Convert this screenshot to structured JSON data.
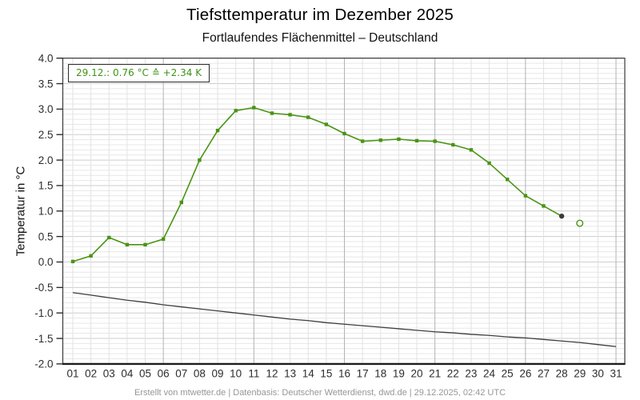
{
  "header": {
    "title": "Tiefsttemperatur im Dezember 2025",
    "subtitle": "Fortlaufendes Flächenmittel – Deutschland"
  },
  "annotation": {
    "text": "29.12.: 0.76 °C ≙ +2.34 K",
    "color": "#3f9314"
  },
  "footer": {
    "text": "Erstellt von mtwetter.de | Datenbasis: Deutscher Wetterdienst, dwd.de | 29.12.2025, 02:42 UTC"
  },
  "chart_data": {
    "type": "line",
    "title": "Tiefsttemperatur im Dezember 2025",
    "subtitle": "Fortlaufendes Flächenmittel – Deutschland",
    "ylabel": "Temperatur in °C",
    "xlabel": "",
    "ylim": [
      -2.0,
      4.0
    ],
    "grid": true,
    "y_ticks": [
      "4.0",
      "3.5",
      "3.0",
      "2.5",
      "2.0",
      "1.5",
      "1.0",
      "0.5",
      "0.0",
      "-0.5",
      "-1.0",
      "-1.5",
      "-2.0"
    ],
    "x_labels": [
      "01",
      "02",
      "03",
      "04",
      "05",
      "06",
      "07",
      "08",
      "09",
      "10",
      "11",
      "12",
      "13",
      "14",
      "15",
      "16",
      "17",
      "18",
      "19",
      "20",
      "21",
      "22",
      "23",
      "24",
      "25",
      "26",
      "27",
      "28",
      "29",
      "30",
      "31"
    ],
    "series": [
      {
        "id": "daily-min-temperature",
        "color": "#4a9413",
        "marker": "square",
        "values": [
          0.01,
          0.12,
          0.48,
          0.34,
          0.34,
          0.45,
          1.17,
          2.0,
          2.58,
          2.97,
          3.03,
          2.92,
          2.89,
          2.84,
          2.7,
          2.52,
          2.37,
          2.39,
          2.41,
          2.38,
          2.37,
          2.3,
          2.2,
          1.94,
          1.62,
          1.3,
          1.1,
          0.9
        ]
      },
      {
        "id": "reference-mean",
        "color": "#3d3d3d",
        "marker": "none",
        "values": [
          -0.6,
          -0.65,
          -0.7,
          -0.75,
          -0.79,
          -0.84,
          -0.88,
          -0.92,
          -0.96,
          -1.0,
          -1.04,
          -1.08,
          -1.12,
          -1.15,
          -1.19,
          -1.22,
          -1.25,
          -1.28,
          -1.31,
          -1.34,
          -1.37,
          -1.39,
          -1.42,
          -1.44,
          -1.47,
          -1.49,
          -1.52,
          -1.55,
          -1.58,
          -1.62,
          -1.66
        ]
      }
    ],
    "end_marker": {
      "day": "28",
      "value": 0.9,
      "style": "filled-dark-circle"
    },
    "open_marker": {
      "day": "29",
      "value": 0.76,
      "style": "open-green-circle"
    },
    "colors": {
      "accent_green": "#4a9413",
      "reference_line": "#3d3d3d",
      "grid_minor": "#e7e7e7",
      "grid_major_h": "#cdcdcd",
      "grid_major_v": "#b3b3b3",
      "frame": "#3a3a3a"
    }
  }
}
